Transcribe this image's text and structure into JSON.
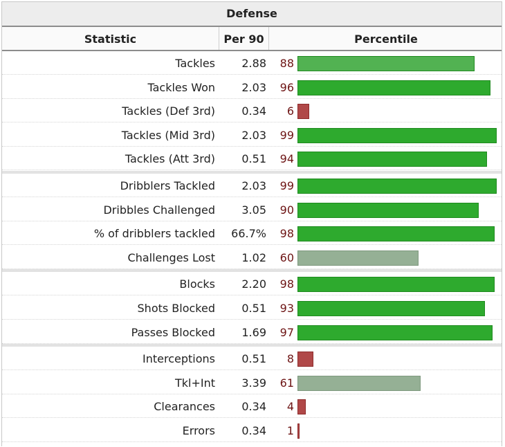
{
  "title": "Defense",
  "headers": {
    "statistic": "Statistic",
    "per90": "Per 90",
    "percentile": "Percentile"
  },
  "colors": {
    "elite": "#2eaa2e",
    "high": "#52b252",
    "average": "#95b095",
    "low": "#b04848"
  },
  "chart_data": {
    "type": "bar",
    "orientation": "horizontal",
    "title": "Defense",
    "xlim": [
      0,
      100
    ],
    "groups": [
      {
        "rows": [
          {
            "stat": "Tackles",
            "per90": "2.88",
            "percentile": 88
          },
          {
            "stat": "Tackles Won",
            "per90": "2.03",
            "percentile": 96
          },
          {
            "stat": "Tackles (Def 3rd)",
            "per90": "0.34",
            "percentile": 6
          },
          {
            "stat": "Tackles (Mid 3rd)",
            "per90": "2.03",
            "percentile": 99
          },
          {
            "stat": "Tackles (Att 3rd)",
            "per90": "0.51",
            "percentile": 94
          }
        ]
      },
      {
        "rows": [
          {
            "stat": "Dribblers Tackled",
            "per90": "2.03",
            "percentile": 99
          },
          {
            "stat": "Dribbles Challenged",
            "per90": "3.05",
            "percentile": 90
          },
          {
            "stat": "% of dribblers tackled",
            "per90": "66.7%",
            "percentile": 98
          },
          {
            "stat": "Challenges Lost",
            "per90": "1.02",
            "percentile": 60
          }
        ]
      },
      {
        "rows": [
          {
            "stat": "Blocks",
            "per90": "2.20",
            "percentile": 98
          },
          {
            "stat": "Shots Blocked",
            "per90": "0.51",
            "percentile": 93
          },
          {
            "stat": "Passes Blocked",
            "per90": "1.69",
            "percentile": 97
          }
        ]
      },
      {
        "rows": [
          {
            "stat": "Interceptions",
            "per90": "0.51",
            "percentile": 8
          },
          {
            "stat": "Tkl+Int",
            "per90": "3.39",
            "percentile": 61
          },
          {
            "stat": "Clearances",
            "per90": "0.34",
            "percentile": 4
          },
          {
            "stat": "Errors",
            "per90": "0.34",
            "percentile": 1
          }
        ]
      }
    ]
  }
}
